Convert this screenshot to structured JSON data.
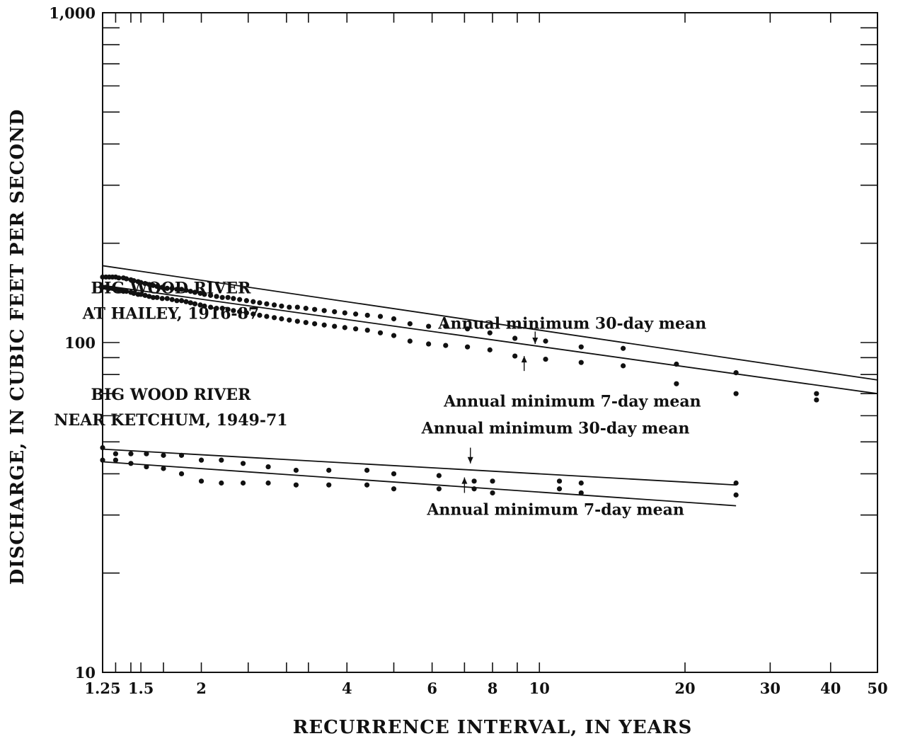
{
  "chart_data": {
    "type": "scatter",
    "xlabel": "RECURRENCE INTERVAL, IN YEARS",
    "ylabel": "DISCHARGE, IN CUBIC FEET PER SECOND",
    "xscale": "log",
    "yscale": "log",
    "xlim": [
      1.25,
      50
    ],
    "ylim": [
      10,
      1000
    ],
    "x_tick_labels": [
      {
        "value": 1.25,
        "label": "1.25"
      },
      {
        "value": 1.5,
        "label": "1.5"
      },
      {
        "value": 2,
        "label": "2"
      },
      {
        "value": 4,
        "label": "4"
      },
      {
        "value": 6,
        "label": "6"
      },
      {
        "value": 8,
        "label": "8"
      },
      {
        "value": 10,
        "label": "10"
      },
      {
        "value": 20,
        "label": "20"
      },
      {
        "value": 30,
        "label": "30"
      },
      {
        "value": 40,
        "label": "40"
      },
      {
        "value": 50,
        "label": "50"
      }
    ],
    "y_tick_labels": [
      {
        "value": 10,
        "label": "10"
      },
      {
        "value": 100,
        "label": "100"
      },
      {
        "value": 1000,
        "label": "1,000"
      }
    ],
    "x_minor_ticks": [
      1.25,
      1.33,
      1.43,
      1.5,
      1.67,
      2,
      2.5,
      3,
      3.33,
      4,
      5,
      6,
      7,
      8,
      9,
      10,
      20,
      30,
      40,
      50
    ],
    "y_minor_ticks": [
      20,
      30,
      40,
      50,
      60,
      70,
      80,
      90,
      200,
      300,
      400,
      500,
      600,
      700,
      800,
      900
    ],
    "station_labels": [
      {
        "lines": [
          "BIG WOOD RIVER",
          "AT HAILEY, 1916-87"
        ],
        "anchor_x": 1.73,
        "anchor_y": 141
      },
      {
        "lines": [
          "BIG WOOD RIVER",
          "NEAR KETCHUM, 1949-71"
        ],
        "anchor_x": 1.73,
        "anchor_y": 67
      }
    ],
    "annotations": [
      {
        "text": "Annual minimum 30-day mean",
        "x": 11.7,
        "y": 110,
        "arrow_from": [
          9.8,
          108
        ],
        "arrow_to": [
          9.8,
          99
        ]
      },
      {
        "text": "Annual minimum 7-day mean",
        "x": 11.7,
        "y": 64,
        "arrow_from": [
          9.3,
          82
        ],
        "arrow_to": [
          9.3,
          91
        ]
      },
      {
        "text": "Annual minimum 30-day mean",
        "x": 10.8,
        "y": 53,
        "arrow_from": [
          7.2,
          48
        ],
        "arrow_to": [
          7.2,
          43
        ]
      },
      {
        "text": "Annual minimum 7-day mean",
        "x": 10.8,
        "y": 30,
        "arrow_from": [
          7.0,
          35
        ],
        "arrow_to": [
          7.0,
          39
        ]
      }
    ],
    "series": [
      {
        "station": "BIG WOOD RIVER AT HAILEY, 1916-87",
        "statistic": "Annual minimum 30-day mean",
        "fit_line": {
          "x": [
            1.25,
            50
          ],
          "y": [
            171,
            77
          ]
        },
        "points": [
          [
            1.25,
            158
          ],
          [
            1.27,
            158
          ],
          [
            1.29,
            158
          ],
          [
            1.31,
            158
          ],
          [
            1.33,
            158
          ],
          [
            1.35,
            157
          ],
          [
            1.38,
            157
          ],
          [
            1.4,
            156
          ],
          [
            1.43,
            155
          ],
          [
            1.45,
            154
          ],
          [
            1.48,
            153
          ],
          [
            1.5,
            152
          ],
          [
            1.53,
            151
          ],
          [
            1.56,
            150
          ],
          [
            1.59,
            149
          ],
          [
            1.62,
            148
          ],
          [
            1.66,
            147
          ],
          [
            1.7,
            146
          ],
          [
            1.74,
            146
          ],
          [
            1.78,
            145
          ],
          [
            1.82,
            145
          ],
          [
            1.86,
            144
          ],
          [
            1.9,
            143
          ],
          [
            1.94,
            142
          ],
          [
            1.99,
            141
          ],
          [
            2.03,
            140
          ],
          [
            2.09,
            139
          ],
          [
            2.15,
            138
          ],
          [
            2.21,
            137
          ],
          [
            2.27,
            137
          ],
          [
            2.33,
            136
          ],
          [
            2.4,
            135
          ],
          [
            2.48,
            134
          ],
          [
            2.56,
            133
          ],
          [
            2.64,
            132
          ],
          [
            2.73,
            131
          ],
          [
            2.83,
            130
          ],
          [
            2.93,
            129
          ],
          [
            3.04,
            128
          ],
          [
            3.16,
            128
          ],
          [
            3.29,
            127
          ],
          [
            3.43,
            126
          ],
          [
            3.59,
            125
          ],
          [
            3.77,
            124
          ],
          [
            3.96,
            123
          ],
          [
            4.17,
            122
          ],
          [
            4.41,
            121
          ],
          [
            4.69,
            120
          ],
          [
            5.0,
            118
          ],
          [
            5.4,
            114
          ],
          [
            5.9,
            112
          ],
          [
            6.4,
            112
          ],
          [
            7.1,
            110
          ],
          [
            7.9,
            107
          ],
          [
            8.9,
            103
          ],
          [
            10.3,
            101
          ],
          [
            12.2,
            97
          ],
          [
            14.9,
            96
          ],
          [
            19.2,
            86
          ],
          [
            25.5,
            81
          ],
          [
            37.4,
            70
          ]
        ]
      },
      {
        "station": "BIG WOOD RIVER AT HAILEY, 1916-87",
        "statistic": "Annual minimum 7-day mean",
        "fit_line": {
          "x": [
            1.25,
            50
          ],
          "y": [
            149,
            70
          ]
        },
        "points": [
          [
            1.25,
            147
          ],
          [
            1.27,
            147
          ],
          [
            1.29,
            146
          ],
          [
            1.31,
            146
          ],
          [
            1.33,
            145
          ],
          [
            1.35,
            144
          ],
          [
            1.38,
            143
          ],
          [
            1.4,
            143
          ],
          [
            1.43,
            142
          ],
          [
            1.45,
            141
          ],
          [
            1.48,
            140
          ],
          [
            1.5,
            140
          ],
          [
            1.53,
            139
          ],
          [
            1.56,
            138
          ],
          [
            1.59,
            137
          ],
          [
            1.62,
            137
          ],
          [
            1.66,
            136
          ],
          [
            1.7,
            136
          ],
          [
            1.74,
            135
          ],
          [
            1.78,
            134
          ],
          [
            1.82,
            134
          ],
          [
            1.86,
            133
          ],
          [
            1.9,
            132
          ],
          [
            1.94,
            131
          ],
          [
            1.99,
            130
          ],
          [
            2.03,
            129
          ],
          [
            2.09,
            128
          ],
          [
            2.15,
            127
          ],
          [
            2.21,
            127
          ],
          [
            2.27,
            126
          ],
          [
            2.33,
            125
          ],
          [
            2.4,
            124
          ],
          [
            2.48,
            123
          ],
          [
            2.56,
            122
          ],
          [
            2.64,
            121
          ],
          [
            2.73,
            120
          ],
          [
            2.83,
            119
          ],
          [
            2.93,
            118
          ],
          [
            3.04,
            117
          ],
          [
            3.16,
            116
          ],
          [
            3.29,
            115
          ],
          [
            3.43,
            114
          ],
          [
            3.59,
            113
          ],
          [
            3.77,
            112
          ],
          [
            3.96,
            111
          ],
          [
            4.17,
            110
          ],
          [
            4.41,
            109
          ],
          [
            4.69,
            107
          ],
          [
            5.0,
            105
          ],
          [
            5.4,
            101
          ],
          [
            5.9,
            99
          ],
          [
            6.4,
            98
          ],
          [
            7.1,
            97
          ],
          [
            7.9,
            95
          ],
          [
            8.9,
            91
          ],
          [
            10.3,
            89
          ],
          [
            12.2,
            87
          ],
          [
            14.9,
            85
          ],
          [
            19.2,
            75
          ],
          [
            25.5,
            70
          ],
          [
            37.4,
            67
          ]
        ]
      },
      {
        "station": "BIG WOOD RIVER NEAR KETCHUM, 1949-71",
        "statistic": "Annual minimum 30-day mean",
        "fit_line": {
          "x": [
            1.25,
            25.5
          ],
          "y": [
            47.5,
            37.0
          ]
        },
        "points": [
          [
            1.25,
            48
          ],
          [
            1.33,
            46
          ],
          [
            1.43,
            46
          ],
          [
            1.54,
            46
          ],
          [
            1.67,
            45.5
          ],
          [
            1.82,
            45.5
          ],
          [
            2.0,
            44
          ],
          [
            2.2,
            44
          ],
          [
            2.44,
            43
          ],
          [
            2.75,
            42
          ],
          [
            3.14,
            41
          ],
          [
            3.67,
            41
          ],
          [
            4.4,
            41
          ],
          [
            5.0,
            40
          ],
          [
            6.2,
            39.5
          ],
          [
            7.33,
            38
          ],
          [
            8.0,
            38
          ],
          [
            11.0,
            38
          ],
          [
            12.2,
            37.5
          ],
          [
            25.5,
            37.5
          ]
        ]
      },
      {
        "station": "BIG WOOD RIVER NEAR KETCHUM, 1949-71",
        "statistic": "Annual minimum 7-day mean",
        "fit_line": {
          "x": [
            1.25,
            25.5
          ],
          "y": [
            43.5,
            32.0
          ]
        },
        "points": [
          [
            1.25,
            44
          ],
          [
            1.33,
            44
          ],
          [
            1.43,
            43
          ],
          [
            1.54,
            42
          ],
          [
            1.67,
            41.5
          ],
          [
            1.82,
            40
          ],
          [
            2.0,
            38
          ],
          [
            2.2,
            37.5
          ],
          [
            2.44,
            37.5
          ],
          [
            2.75,
            37.5
          ],
          [
            3.14,
            37
          ],
          [
            3.67,
            37
          ],
          [
            4.4,
            37
          ],
          [
            5.0,
            36
          ],
          [
            6.2,
            36
          ],
          [
            7.33,
            36
          ],
          [
            8.0,
            35
          ],
          [
            11.0,
            36
          ],
          [
            12.2,
            35
          ],
          [
            25.5,
            34.5
          ]
        ]
      }
    ]
  }
}
